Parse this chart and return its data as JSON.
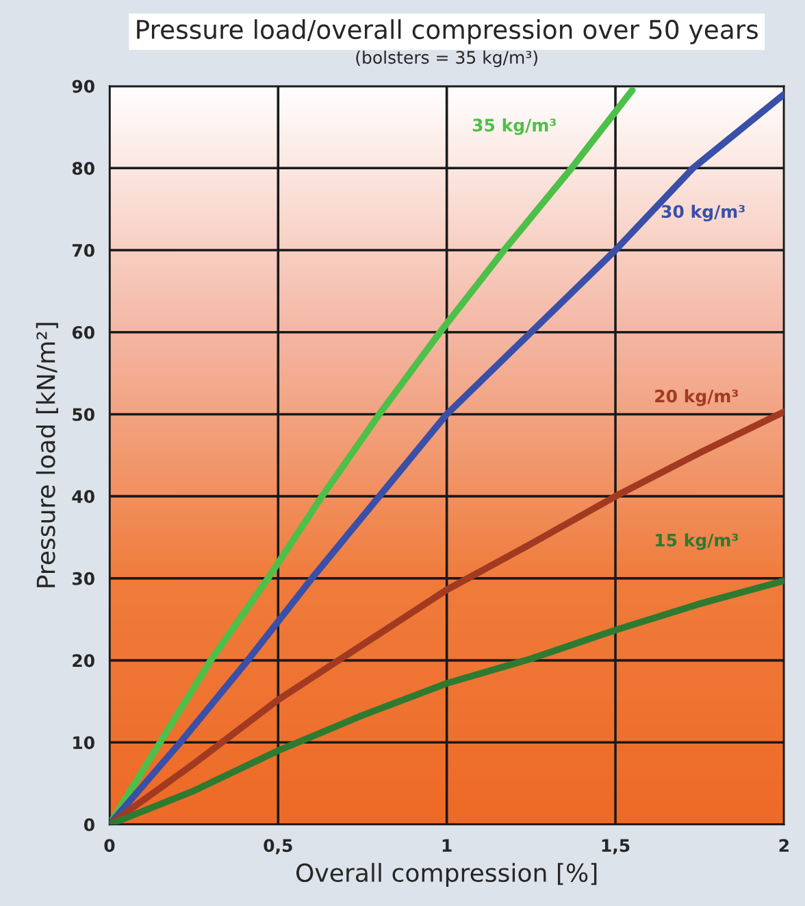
{
  "chart_data": {
    "type": "line",
    "title": "Pressure load/overall compression over 50 years",
    "subtitle": "(bolsters = 35 kg/m³)",
    "xlabel": "Overall compression [%]",
    "ylabel": "Pressure load [kN/m²]",
    "series": [
      {
        "name": "35 kg/m³",
        "color": "#4cc048",
        "x": [
          0,
          0.15,
          0.3,
          0.47,
          0.63,
          0.8,
          0.98,
          1.17,
          1.37,
          1.55
        ],
        "values": [
          0,
          10,
          20,
          30,
          40,
          50,
          60,
          70,
          80,
          89.5
        ]
      },
      {
        "name": "30 kg/m³",
        "color": "#3a4fa8",
        "x": [
          0,
          0.21,
          0.41,
          0.6,
          0.8,
          1.0,
          1.25,
          1.5,
          1.73,
          2.0
        ],
        "values": [
          0,
          10,
          20,
          30,
          40,
          50,
          60,
          70,
          80,
          89
        ]
      },
      {
        "name": "20 kg/m³",
        "color": "#a23a22",
        "x": [
          0,
          0.25,
          0.5,
          0.75,
          1.0,
          1.25,
          1.5,
          1.75,
          2.0
        ],
        "values": [
          0,
          7.4,
          15.2,
          21.9,
          28.6,
          34.2,
          40,
          45.3,
          50.3
        ]
      },
      {
        "name": "15 kg/m³",
        "color": "#2e7a30",
        "x": [
          0,
          0.25,
          0.5,
          0.75,
          1.0,
          1.25,
          1.5,
          1.75,
          2.0
        ],
        "values": [
          0,
          4.1,
          9.0,
          13.3,
          17.2,
          20.2,
          23.7,
          26.9,
          29.7
        ]
      }
    ],
    "xlim": [
      0,
      2
    ],
    "xticks": [
      0,
      {
        "value": 0.5,
        "label": "0,5"
      },
      1,
      {
        "value": 1.5,
        "label": "1,5"
      },
      2
    ],
    "ylim": [
      0,
      90
    ],
    "yticks": [
      0,
      10,
      20,
      30,
      40,
      50,
      60,
      70,
      80,
      90
    ],
    "grid": true,
    "legend": false,
    "marker": "none",
    "line_style": "solid"
  }
}
